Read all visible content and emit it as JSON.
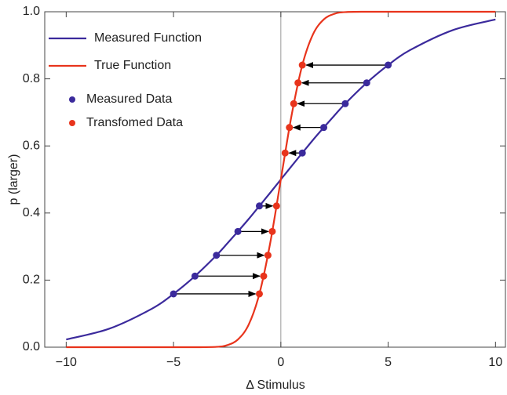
{
  "chart_data": {
    "type": "line",
    "xlabel": "Δ Stimulus",
    "ylabel": "p (larger)",
    "xlim": [
      -11,
      10.5
    ],
    "ylim": [
      0,
      1
    ],
    "xticks": [
      {
        "value": -10,
        "label": "−10"
      },
      {
        "value": -5,
        "label": "−5"
      },
      0,
      5,
      10
    ],
    "yticks": [
      {
        "value": 0,
        "label": "0.0"
      },
      0.2,
      0.4,
      0.6,
      0.8,
      {
        "value": 1,
        "label": "1.0"
      }
    ],
    "x": [
      -10,
      -8,
      -6,
      -5,
      -4,
      -3,
      -2.5,
      -2,
      -1.5,
      -1,
      -0.5,
      0,
      0.5,
      1,
      1.5,
      2,
      2.5,
      3,
      4,
      5,
      6,
      8,
      10
    ],
    "series": [
      {
        "name": "Measured Function",
        "color": "#3b2a9c",
        "values": [
          0.023,
          0.055,
          0.115,
          0.159,
          0.212,
          0.274,
          0.309,
          0.345,
          0.382,
          0.421,
          0.46,
          0.5,
          0.54,
          0.579,
          0.618,
          0.655,
          0.691,
          0.726,
          0.788,
          0.841,
          0.885,
          0.945,
          0.977
        ]
      },
      {
        "name": "True Function",
        "color": "#e8341c",
        "values": [
          0,
          0,
          0,
          0,
          0,
          0.001,
          0.006,
          0.023,
          0.067,
          0.159,
          0.309,
          0.5,
          0.691,
          0.841,
          0.933,
          0.977,
          0.994,
          0.999,
          1,
          1,
          1,
          1,
          1
        ]
      }
    ],
    "points": [
      {
        "name": "Measured Data",
        "color": "#3b2a9c",
        "x": [
          -5,
          -4,
          -3,
          -2,
          -1,
          1,
          2,
          3,
          4,
          5
        ],
        "values": [
          0.159,
          0.212,
          0.274,
          0.345,
          0.421,
          0.579,
          0.655,
          0.726,
          0.788,
          0.841
        ]
      },
      {
        "name": "Transfomed Data",
        "color": "#e8341c",
        "x": [
          -1,
          -0.8,
          -0.6,
          -0.4,
          -0.2,
          0.2,
          0.4,
          0.6,
          0.8,
          1
        ],
        "values": [
          0.159,
          0.212,
          0.274,
          0.345,
          0.421,
          0.579,
          0.655,
          0.726,
          0.788,
          0.841
        ]
      }
    ]
  }
}
